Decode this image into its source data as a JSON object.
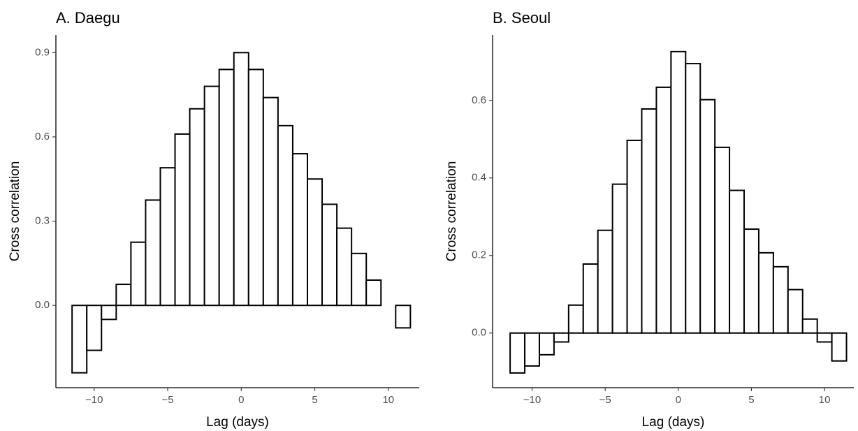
{
  "chart_data": [
    {
      "type": "bar",
      "title": "A. Daegu",
      "xlabel": "Lag (days)",
      "ylabel": "Cross correlation",
      "x": [
        -11,
        -10,
        -9,
        -8,
        -7,
        -6,
        -5,
        -4,
        -3,
        -2,
        -1,
        0,
        1,
        2,
        3,
        4,
        5,
        6,
        7,
        8,
        9,
        10,
        11
      ],
      "values": [
        -0.24,
        -0.16,
        -0.05,
        0.075,
        0.225,
        0.375,
        0.49,
        0.61,
        0.7,
        0.78,
        0.84,
        0.9,
        0.84,
        0.74,
        0.64,
        0.54,
        0.45,
        0.36,
        0.275,
        0.185,
        0.09,
        0.0,
        -0.08
      ],
      "color": "#ffffff",
      "xlim": [
        -12.6,
        12.1
      ],
      "ylim": [
        -0.293,
        0.963
      ],
      "xticks": [
        {
          "value": -10,
          "label": "−10"
        },
        {
          "value": -5,
          "label": "−5"
        },
        0,
        5,
        10
      ],
      "yticks": [
        {
          "value": 0,
          "label": "0.0"
        },
        0.3,
        0.6,
        0.9
      ],
      "grid": false
    },
    {
      "type": "bar",
      "title": "B. Seoul",
      "xlabel": "Lag (days)",
      "ylabel": "Cross correlation",
      "x": [
        -11,
        -10,
        -9,
        -8,
        -7,
        -6,
        -5,
        -4,
        -3,
        -2,
        -1,
        0,
        1,
        2,
        3,
        4,
        5,
        6,
        7,
        8,
        9,
        10,
        11
      ],
      "values": [
        -0.103,
        -0.085,
        -0.056,
        -0.023,
        0.072,
        0.178,
        0.265,
        0.384,
        0.497,
        0.578,
        0.634,
        0.726,
        0.695,
        0.602,
        0.479,
        0.368,
        0.268,
        0.207,
        0.171,
        0.112,
        0.036,
        -0.023,
        -0.072
      ],
      "color": "#ffffff",
      "xlim": [
        -12.7,
        12.0
      ],
      "ylim": [
        -0.141,
        0.769
      ],
      "xticks": [
        {
          "value": -10,
          "label": "−10"
        },
        {
          "value": -5,
          "label": "−5"
        },
        0,
        5,
        10
      ],
      "yticks": [
        {
          "value": 0,
          "label": "0.0"
        },
        0.2,
        0.4,
        0.6
      ],
      "grid": false
    }
  ]
}
